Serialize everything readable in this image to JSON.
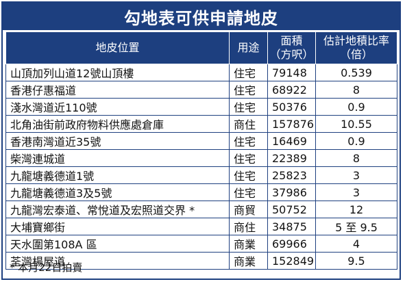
{
  "title": "勾地表可供申請地皮",
  "headers": {
    "location": "地皮位置",
    "use": "用途",
    "area_line1": "面積",
    "area_line2": "（方呎）",
    "ratio_line1": "估計地積比率",
    "ratio_line2": "（倍）"
  },
  "rows": [
    {
      "location": "山頂加列山道12號山頂樓",
      "use": "住宅",
      "area": "79148",
      "ratio": "0.539"
    },
    {
      "location": "香港仔惠福道",
      "use": "住宅",
      "area": "68922",
      "ratio": "8"
    },
    {
      "location": "淺水灣道近110號",
      "use": "住宅",
      "area": "50376",
      "ratio": "0.9"
    },
    {
      "location": "北角油街前政府物料供應處倉庫",
      "use": "商住",
      "area": "157876",
      "ratio": "10.55"
    },
    {
      "location": "香港南灣道近35號",
      "use": "住宅",
      "area": "16469",
      "ratio": "0.9"
    },
    {
      "location": "柴灣連城道",
      "use": "住宅",
      "area": "22389",
      "ratio": "8"
    },
    {
      "location": "九龍塘義德道1號",
      "use": "住宅",
      "area": "25823",
      "ratio": "3"
    },
    {
      "location": "九龍塘義德道3及5號",
      "use": "住宅",
      "area": "37986",
      "ratio": "3"
    },
    {
      "location": "九龍灣宏泰道、常悅道及宏照道交界 *",
      "use": "商貿",
      "area": "50752",
      "ratio": "12"
    },
    {
      "location": "大埔寶鄉街",
      "use": "商住",
      "area": "34875",
      "ratio": "5 至 9.5"
    },
    {
      "location": "天水圍第108A 區",
      "use": "商業",
      "area": "69966",
      "ratio": "4"
    },
    {
      "location": "荃灣楊屋道",
      "use": "商業",
      "area": "152849",
      "ratio": "9.5"
    }
  ],
  "footnote": "* 本月22日拍賣",
  "colors": {
    "header_bg": "#1d3f7f",
    "header_text": "#ffffff",
    "border": "#1d3f7f"
  }
}
